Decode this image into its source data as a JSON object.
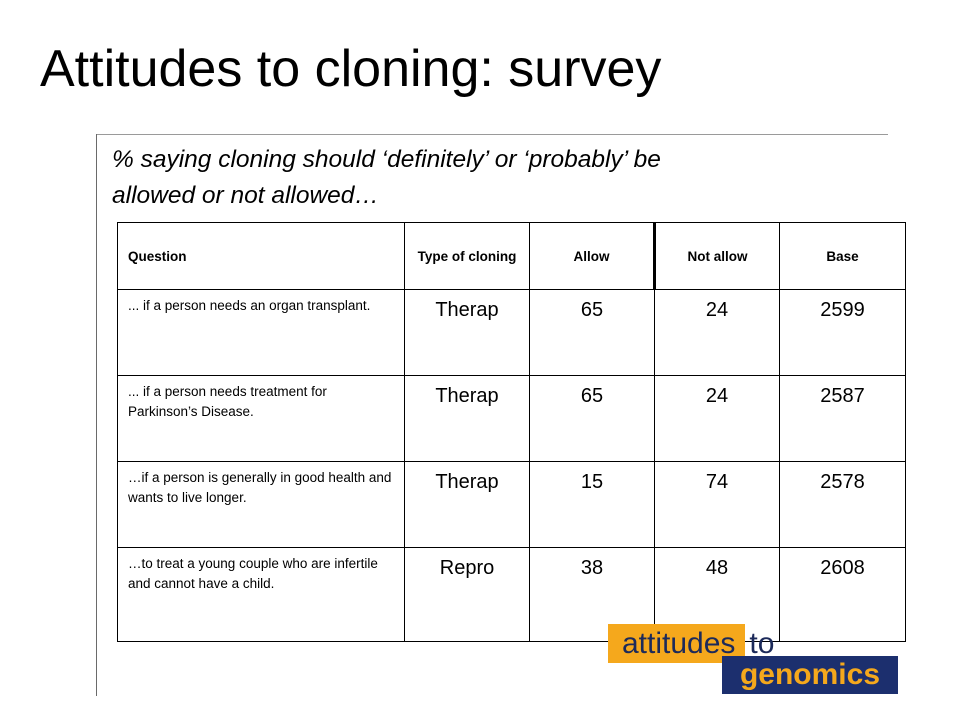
{
  "slide": {
    "title": "Attitudes to cloning: survey",
    "subtitle_line1": "% saying cloning should ‘definitely’ or ‘probably’ be",
    "subtitle_line2": "allowed or not allowed…"
  },
  "table": {
    "headers": {
      "question": "Question",
      "type": "Type of cloning",
      "allow": "Allow",
      "not_allow": "Not allow",
      "base": "Base"
    },
    "rows": [
      {
        "question": "... if a person needs an organ transplant.",
        "type": "Therap",
        "allow": "65",
        "not_allow": "24",
        "base": "2599"
      },
      {
        "question": "... if a person needs treatment for Parkinson’s Disease.",
        "type": "Therap",
        "allow": "65",
        "not_allow": "24",
        "base": "2587"
      },
      {
        "question": "…if a person is generally in good health and wants to live longer.",
        "type": "Therap",
        "allow": "15",
        "not_allow": "74",
        "base": "2578"
      },
      {
        "question": "…to treat a young couple who are infertile and cannot have a child.",
        "type": "Repro",
        "allow": "38",
        "not_allow": "48",
        "base": "2608"
      }
    ]
  },
  "logo": {
    "word1": "attitudes",
    "word2": "to",
    "word3": "genomics",
    "colors": {
      "orange": "#f5a81c",
      "navy": "#1c2f6e"
    }
  }
}
